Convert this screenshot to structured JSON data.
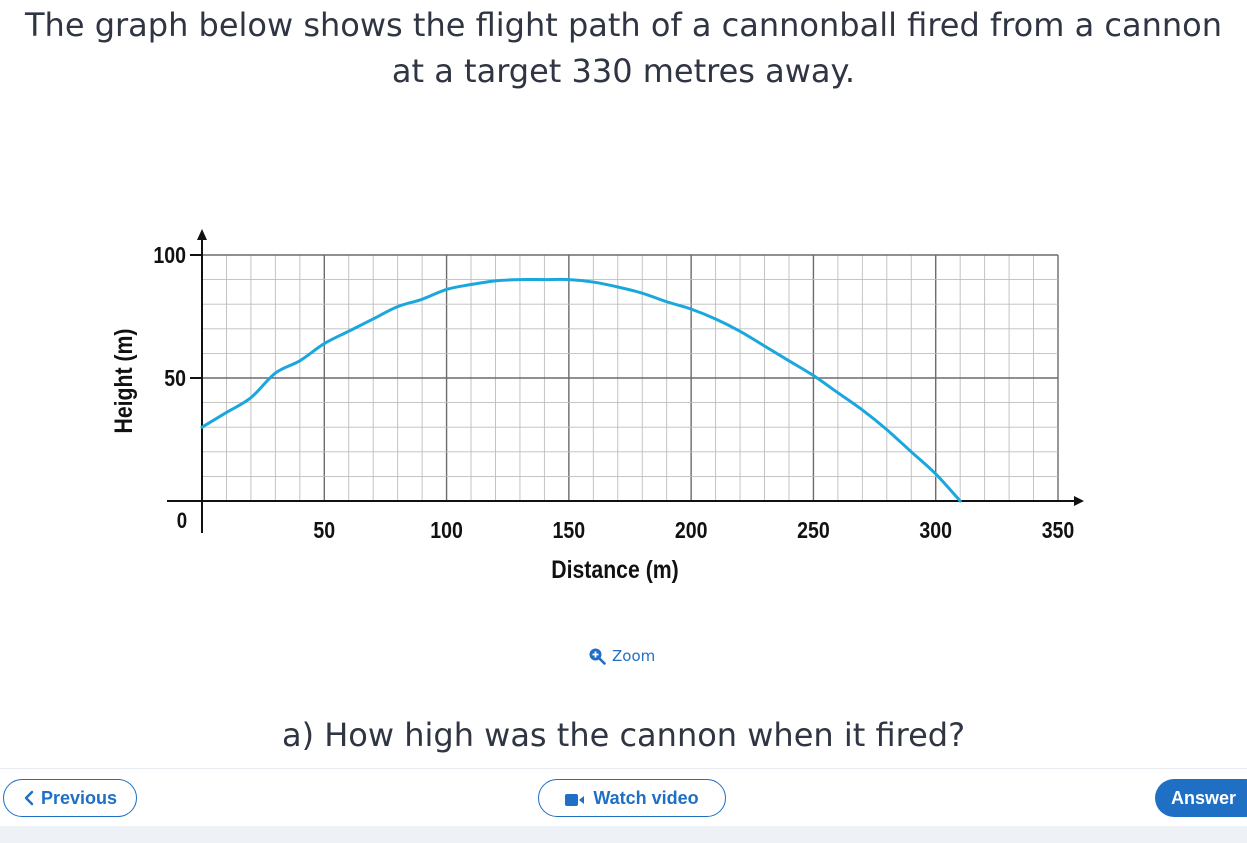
{
  "question": {
    "text": "The graph below shows the flight path of a cannonball fired from a cannon at a target 330 metres away."
  },
  "chart_data": {
    "type": "line",
    "xlabel": "Distance (m)",
    "ylabel": "Height (m)",
    "xlim": [
      0,
      350
    ],
    "ylim": [
      0,
      100
    ],
    "x_ticks": [
      "0",
      "50",
      "100",
      "150",
      "200",
      "250",
      "300",
      "350"
    ],
    "y_ticks": [
      "0",
      "50",
      "100"
    ],
    "grid": true,
    "series": [
      {
        "color": "#1aa7de",
        "points": [
          [
            0,
            30
          ],
          [
            10,
            36
          ],
          [
            20,
            42
          ],
          [
            30,
            52
          ],
          [
            40,
            57
          ],
          [
            50,
            64
          ],
          [
            60,
            69
          ],
          [
            70,
            74
          ],
          [
            80,
            79
          ],
          [
            90,
            82
          ],
          [
            100,
            86
          ],
          [
            110,
            88
          ],
          [
            120,
            89.5
          ],
          [
            130,
            90
          ],
          [
            140,
            90
          ],
          [
            150,
            90
          ],
          [
            160,
            89
          ],
          [
            170,
            87
          ],
          [
            180,
            84.5
          ],
          [
            190,
            81
          ],
          [
            200,
            78
          ],
          [
            210,
            74
          ],
          [
            220,
            69
          ],
          [
            230,
            63
          ],
          [
            240,
            57
          ],
          [
            250,
            51
          ],
          [
            260,
            44
          ],
          [
            270,
            37
          ],
          [
            280,
            29
          ],
          [
            290,
            20
          ],
          [
            300,
            11
          ],
          [
            310,
            0
          ]
        ]
      }
    ]
  },
  "zoom": {
    "label": "Zoom",
    "icon": "zoom-in-icon"
  },
  "subquestion": {
    "text": "a) How high was the cannon when it fired?"
  },
  "buttons": {
    "previous": "Previous",
    "watch_video": "Watch video",
    "answer": "Answer"
  },
  "colors": {
    "accent": "#1f6fc5",
    "curve": "#1aa7de"
  }
}
